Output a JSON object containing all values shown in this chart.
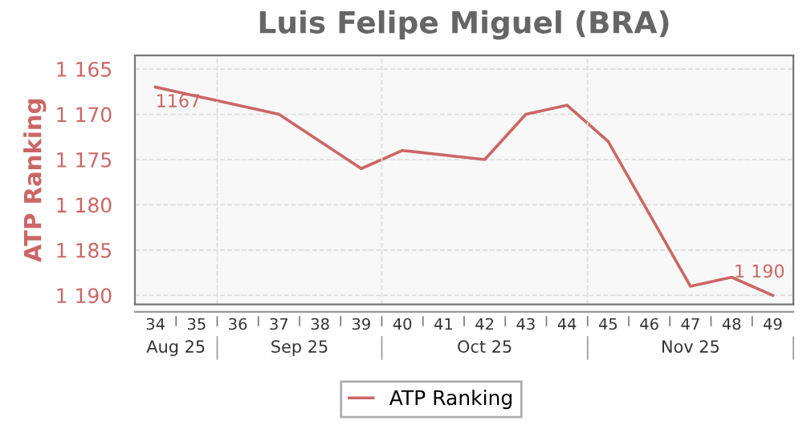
{
  "chart_data": {
    "type": "line",
    "title": "Luis Felipe Miguel (BRA)",
    "ylabel": "ATP Ranking",
    "categories": [
      "34",
      "35",
      "36",
      "37",
      "38",
      "39",
      "40",
      "41",
      "42",
      "43",
      "44",
      "45",
      "46",
      "47",
      "48",
      "49"
    ],
    "series": [
      {
        "name": "ATP Ranking",
        "color": "#cc6666",
        "x": [
          "34",
          "35",
          "37",
          "39",
          "40",
          "42",
          "43",
          "44",
          "45",
          "47",
          "48",
          "49"
        ],
        "values": [
          1167,
          1168,
          1170,
          1176,
          1174,
          1175,
          1170,
          1169,
          1173,
          1189,
          1188,
          1190
        ]
      }
    ],
    "ylim": [
      1191,
      1163.5
    ],
    "yticks": [
      {
        "value": 1165,
        "label": "1 165"
      },
      {
        "value": 1170,
        "label": "1 170"
      },
      {
        "value": 1175,
        "label": "1 175"
      },
      {
        "value": 1180,
        "label": "1 180"
      },
      {
        "value": 1185,
        "label": "1 185"
      },
      {
        "value": 1190,
        "label": "1 190"
      }
    ],
    "annotations": [
      {
        "text": "1167",
        "x": "34",
        "y": 1167
      },
      {
        "text": "1 190",
        "x": "49",
        "y": 1190
      },
      "Aug 25",
      "Sep 25",
      "Oct 25",
      "Nov 25"
    ],
    "grid": true,
    "legend": "bottom",
    "marker": "none",
    "line_style": "solid"
  }
}
